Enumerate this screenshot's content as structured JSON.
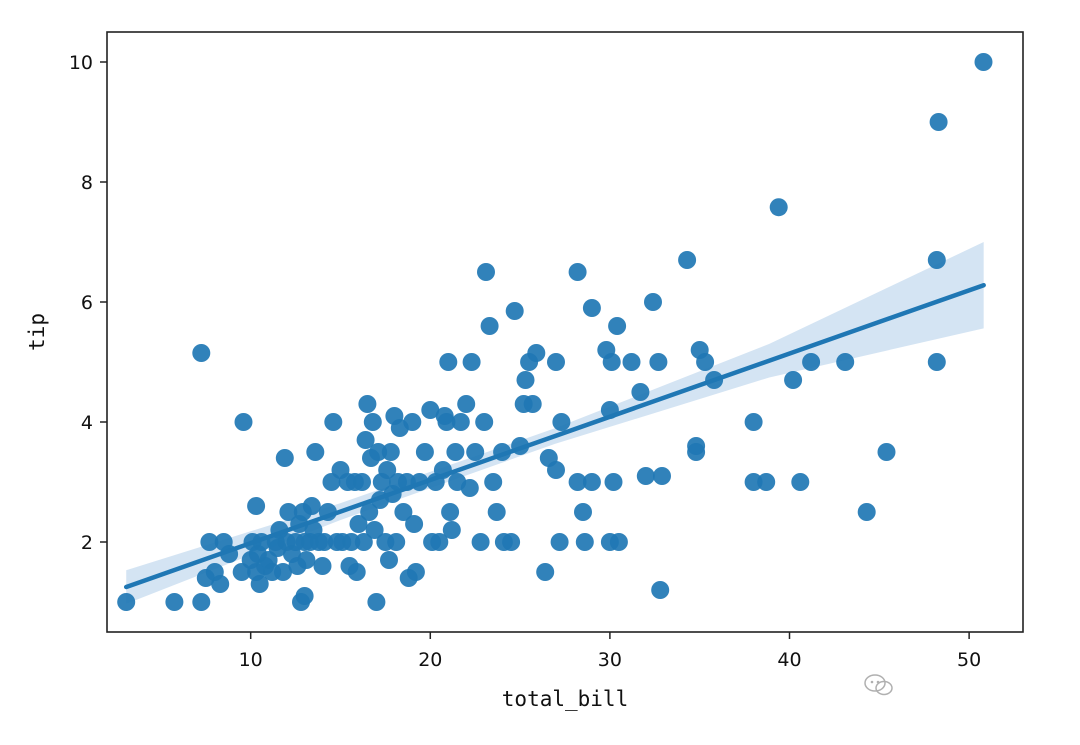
{
  "chart_data": {
    "type": "scatter",
    "xlabel": "total_bill",
    "ylabel": "tip",
    "xlim": [
      2.0,
      53.0
    ],
    "ylim": [
      0.5,
      10.5
    ],
    "xticks": [
      10,
      20,
      30,
      40,
      50
    ],
    "yticks": [
      2,
      4,
      6,
      8,
      10
    ],
    "grid": false,
    "point_color": "#1f77b4",
    "line_color": "#1f77b4",
    "band_color": "#c6dbef",
    "regression": {
      "x_range": [
        3.07,
        50.81
      ],
      "y_range": [
        1.25,
        6.28
      ],
      "ci_half_width": [
        0.28,
        0.14,
        0.13,
        0.28,
        0.72
      ]
    },
    "points": [
      [
        3.07,
        1.0
      ],
      [
        5.75,
        1.0
      ],
      [
        7.25,
        1.0
      ],
      [
        7.25,
        5.15
      ],
      [
        7.5,
        1.4
      ],
      [
        7.7,
        2.0
      ],
      [
        8.0,
        1.5
      ],
      [
        8.3,
        1.3
      ],
      [
        8.5,
        2.0
      ],
      [
        8.8,
        1.8
      ],
      [
        9.5,
        1.5
      ],
      [
        9.6,
        4.0
      ],
      [
        10.0,
        1.7
      ],
      [
        10.1,
        2.0
      ],
      [
        10.3,
        1.5
      ],
      [
        10.3,
        2.6
      ],
      [
        10.4,
        1.8
      ],
      [
        10.5,
        1.3
      ],
      [
        10.6,
        2.0
      ],
      [
        10.8,
        1.6
      ],
      [
        11.0,
        1.7
      ],
      [
        11.2,
        1.5
      ],
      [
        11.4,
        2.0
      ],
      [
        11.5,
        1.9
      ],
      [
        11.6,
        2.2
      ],
      [
        11.8,
        1.5
      ],
      [
        11.9,
        3.4
      ],
      [
        12.0,
        2.0
      ],
      [
        12.1,
        2.5
      ],
      [
        12.3,
        1.8
      ],
      [
        12.5,
        2.0
      ],
      [
        12.6,
        1.6
      ],
      [
        12.7,
        2.3
      ],
      [
        12.8,
        1.0
      ],
      [
        12.9,
        2.5
      ],
      [
        13.0,
        1.1
      ],
      [
        13.0,
        2.0
      ],
      [
        13.1,
        1.7
      ],
      [
        13.3,
        2.0
      ],
      [
        13.4,
        2.6
      ],
      [
        13.5,
        2.2
      ],
      [
        13.6,
        3.5
      ],
      [
        13.8,
        2.0
      ],
      [
        14.0,
        1.6
      ],
      [
        14.1,
        2.0
      ],
      [
        14.3,
        2.5
      ],
      [
        14.5,
        3.0
      ],
      [
        14.6,
        4.0
      ],
      [
        14.8,
        2.0
      ],
      [
        15.0,
        3.2
      ],
      [
        15.1,
        2.0
      ],
      [
        15.4,
        3.0
      ],
      [
        15.5,
        1.6
      ],
      [
        15.6,
        2.0
      ],
      [
        15.8,
        3.0
      ],
      [
        15.9,
        1.5
      ],
      [
        16.0,
        2.3
      ],
      [
        16.2,
        3.0
      ],
      [
        16.3,
        2.0
      ],
      [
        16.4,
        3.7
      ],
      [
        16.5,
        4.3
      ],
      [
        16.6,
        2.5
      ],
      [
        16.7,
        3.4
      ],
      [
        16.8,
        4.0
      ],
      [
        16.9,
        2.2
      ],
      [
        17.0,
        1.0
      ],
      [
        17.1,
        3.5
      ],
      [
        17.2,
        2.7
      ],
      [
        17.3,
        3.0
      ],
      [
        17.5,
        2.0
      ],
      [
        17.6,
        3.2
      ],
      [
        17.7,
        1.7
      ],
      [
        17.8,
        3.5
      ],
      [
        17.9,
        2.8
      ],
      [
        18.0,
        4.1
      ],
      [
        18.1,
        2.0
      ],
      [
        18.2,
        3.0
      ],
      [
        18.3,
        3.9
      ],
      [
        18.5,
        2.5
      ],
      [
        18.7,
        3.0
      ],
      [
        18.8,
        1.4
      ],
      [
        19.0,
        4.0
      ],
      [
        19.1,
        2.3
      ],
      [
        19.2,
        1.5
      ],
      [
        19.4,
        3.0
      ],
      [
        19.7,
        3.5
      ],
      [
        20.0,
        4.2
      ],
      [
        20.1,
        2.0
      ],
      [
        20.3,
        3.0
      ],
      [
        20.5,
        2.0
      ],
      [
        20.7,
        3.2
      ],
      [
        20.8,
        4.1
      ],
      [
        20.9,
        4.0
      ],
      [
        21.0,
        5.0
      ],
      [
        21.1,
        2.5
      ],
      [
        21.2,
        2.2
      ],
      [
        21.4,
        3.5
      ],
      [
        21.5,
        3.0
      ],
      [
        21.7,
        4.0
      ],
      [
        22.0,
        4.3
      ],
      [
        22.2,
        2.9
      ],
      [
        22.3,
        5.0
      ],
      [
        22.5,
        3.5
      ],
      [
        22.8,
        2.0
      ],
      [
        23.0,
        4.0
      ],
      [
        23.1,
        6.5
      ],
      [
        23.3,
        5.6
      ],
      [
        23.5,
        3.0
      ],
      [
        23.7,
        2.5
      ],
      [
        24.0,
        3.5
      ],
      [
        24.1,
        2.0
      ],
      [
        24.5,
        2.0
      ],
      [
        24.7,
        5.85
      ],
      [
        25.0,
        3.6
      ],
      [
        25.2,
        4.3
      ],
      [
        25.3,
        4.7
      ],
      [
        25.5,
        5.0
      ],
      [
        25.7,
        4.3
      ],
      [
        25.9,
        5.15
      ],
      [
        26.4,
        1.5
      ],
      [
        26.6,
        3.4
      ],
      [
        27.0,
        3.2
      ],
      [
        27.0,
        5.0
      ],
      [
        27.2,
        2.0
      ],
      [
        27.3,
        4.0
      ],
      [
        28.2,
        6.5
      ],
      [
        28.2,
        3.0
      ],
      [
        28.5,
        2.5
      ],
      [
        28.6,
        2.0
      ],
      [
        29.0,
        5.9
      ],
      [
        29.0,
        3.0
      ],
      [
        29.8,
        5.2
      ],
      [
        30.0,
        4.2
      ],
      [
        30.0,
        2.0
      ],
      [
        30.1,
        5.0
      ],
      [
        30.2,
        3.0
      ],
      [
        30.4,
        5.6
      ],
      [
        30.5,
        2.0
      ],
      [
        31.2,
        5.0
      ],
      [
        31.7,
        4.5
      ],
      [
        32.0,
        3.1
      ],
      [
        32.4,
        6.0
      ],
      [
        32.7,
        5.0
      ],
      [
        32.8,
        1.2
      ],
      [
        32.9,
        3.1
      ],
      [
        34.3,
        6.7
      ],
      [
        34.8,
        3.6
      ],
      [
        34.8,
        3.5
      ],
      [
        35.0,
        5.2
      ],
      [
        35.3,
        5.0
      ],
      [
        35.8,
        4.7
      ],
      [
        38.0,
        4.0
      ],
      [
        38.0,
        3.0
      ],
      [
        38.7,
        3.0
      ],
      [
        39.4,
        7.58
      ],
      [
        40.2,
        4.7
      ],
      [
        40.6,
        3.0
      ],
      [
        41.2,
        5.0
      ],
      [
        43.1,
        5.0
      ],
      [
        44.3,
        2.5
      ],
      [
        45.4,
        3.5
      ],
      [
        48.2,
        5.0
      ],
      [
        48.2,
        6.7
      ],
      [
        48.3,
        9.0
      ],
      [
        50.8,
        10.0
      ]
    ]
  }
}
